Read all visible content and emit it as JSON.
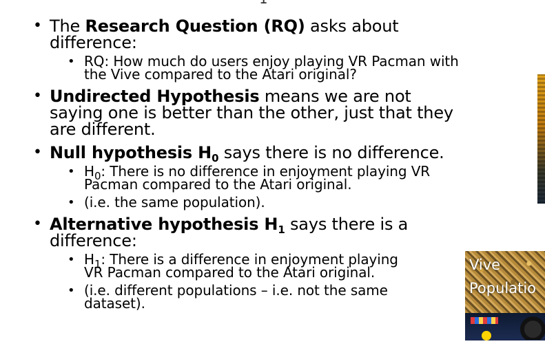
{
  "top_fragment": "1",
  "bullets": [
    {
      "parts": [
        {
          "text": "The ",
          "bold": false
        },
        {
          "text": "Research Question (RQ)",
          "bold": true
        },
        {
          "text": " asks about difference:",
          "bold": false
        }
      ],
      "children": [
        {
          "text": "RQ: How much do users enjoy playing VR Pacman with the Vive compared to the Atari original?"
        }
      ]
    },
    {
      "parts": [
        {
          "text": "Undirected Hypothesis",
          "bold": true
        },
        {
          "text": " means we are not saying one is better than the other, just that they are different.",
          "bold": false
        }
      ],
      "children": []
    },
    {
      "parts": [
        {
          "text": "Null hypothesis H",
          "bold": true
        },
        {
          "text": "0",
          "bold": true,
          "sub": true
        },
        {
          "text": " says there is no difference.",
          "bold": false
        }
      ],
      "children": [
        {
          "prefix": "H",
          "sub": "0",
          "text": ": There is no difference in enjoyment playing VR Pacman compared to the Atari original."
        },
        {
          "text": "(i.e. the same population)."
        }
      ]
    },
    {
      "parts": [
        {
          "text": "Alternative hypothesis H",
          "bold": true
        },
        {
          "text": "1",
          "bold": true,
          "sub": true
        },
        {
          "text": " says there is a difference:",
          "bold": false
        }
      ],
      "children": [
        {
          "prefix": "H",
          "sub": "1",
          "text": ": There is a difference in enjoyment playing VR Pacman compared to the Atari original."
        },
        {
          "text": "(i.e. different populations – i.e. not the same dataset)."
        }
      ]
    }
  ],
  "image_labels": {
    "line1": "Vive",
    "line2": "Populatio"
  },
  "icons": {
    "bullet": "•"
  }
}
